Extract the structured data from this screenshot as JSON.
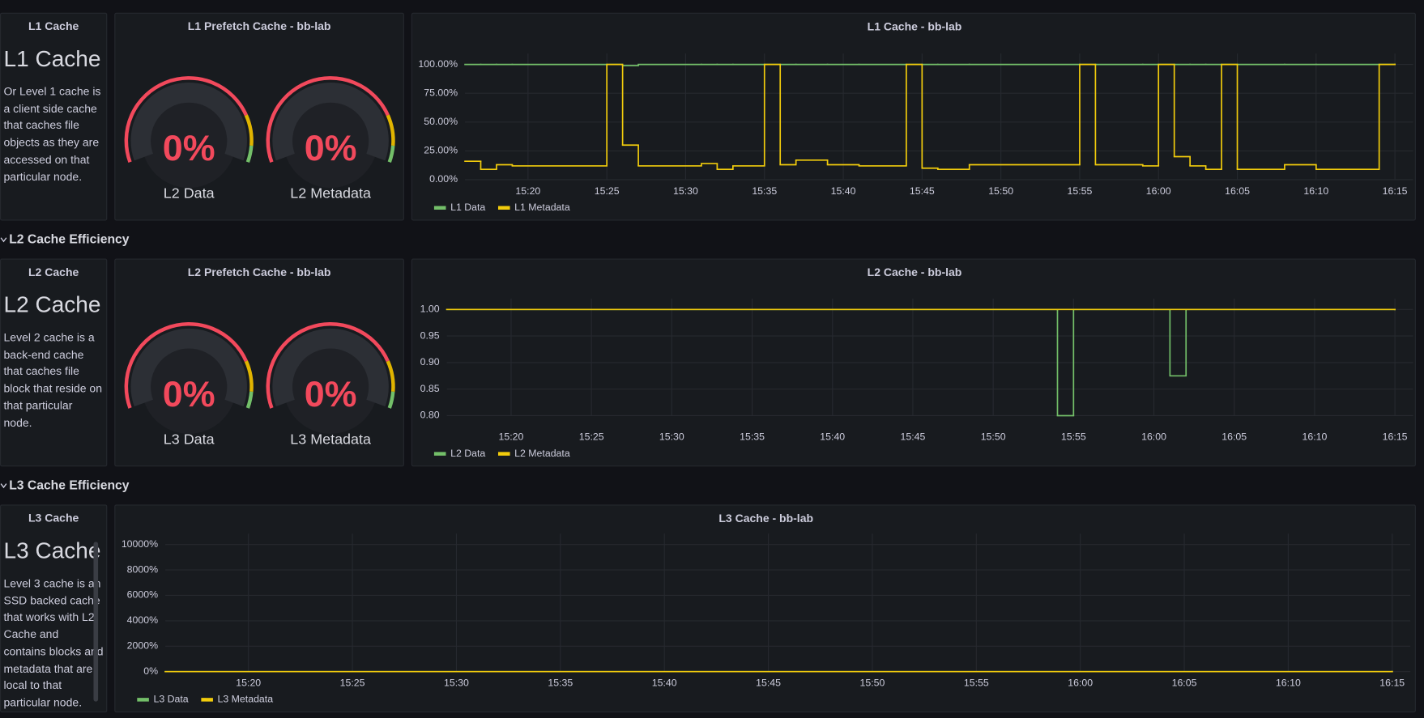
{
  "rows": [
    {
      "title": "L2 Cache Efficiency"
    },
    {
      "title": "L3 Cache Efficiency"
    }
  ],
  "text_panels": [
    {
      "title": "L1 Cache",
      "heading": "L1 Cache",
      "body": "Or Level 1 cache is a client side cache that caches file objects as they are accessed on that particular node."
    },
    {
      "title": "L2 Cache",
      "heading": "L2 Cache",
      "body": "Level 2 cache is a back-end cache that caches file block that reside on that particular node."
    },
    {
      "title": "L3 Cache",
      "heading": "L3 Cache",
      "body": "Level 3 cache is an SSD backed cache that works with L2 Cache and contains blocks and metadata that are local to that particular node."
    }
  ],
  "gauge_panels": [
    {
      "title": "L1 Prefetch Cache - bb-lab",
      "min": 0,
      "max": 100,
      "thresholds": [
        {
          "from": 0,
          "color": "#f2495c"
        },
        {
          "from": 80,
          "color": "#e0b400"
        },
        {
          "from": 93,
          "color": "#73bf69"
        }
      ],
      "gauges": [
        {
          "name": "L2 Data",
          "value": 0,
          "value_label": "0%"
        },
        {
          "name": "L2 Metadata",
          "value": 0,
          "value_label": "0%"
        }
      ]
    },
    {
      "title": "L2 Prefetch Cache - bb-lab",
      "min": 0,
      "max": 100,
      "thresholds": [
        {
          "from": 0,
          "color": "#f2495c"
        },
        {
          "from": 80,
          "color": "#e0b400"
        },
        {
          "from": 93,
          "color": "#73bf69"
        }
      ],
      "gauges": [
        {
          "name": "L3 Data",
          "value": 0,
          "value_label": "0%"
        },
        {
          "name": "L3 Metadata",
          "value": 0,
          "value_label": "0%"
        }
      ]
    }
  ],
  "chart_data": [
    {
      "type": "line",
      "title": "L1 Cache - bb-lab",
      "x": [
        "15:16",
        "15:17",
        "15:18",
        "15:19",
        "15:25",
        "15:26",
        "15:27",
        "15:31",
        "15:32",
        "15:33",
        "15:35",
        "15:36",
        "15:37",
        "15:39",
        "15:41",
        "15:44",
        "15:45",
        "15:46",
        "15:48",
        "15:55",
        "15:56",
        "15:59",
        "16:00",
        "16:01",
        "16:02",
        "16:03",
        "16:04",
        "16:05",
        "16:08",
        "16:10",
        "16:14",
        "16:15"
      ],
      "series": [
        {
          "name": "L1 Data",
          "color": "#73bf69",
          "values": [
            100,
            100,
            100,
            100,
            100,
            99,
            100,
            100,
            100,
            100,
            100,
            100,
            100,
            100,
            100,
            100,
            100,
            100,
            100,
            100,
            100,
            100,
            100,
            100,
            100,
            100,
            100,
            100,
            100,
            100,
            100,
            100
          ]
        },
        {
          "name": "L1 Metadata",
          "color": "#f2cc0c",
          "values": [
            16,
            9,
            13,
            12,
            100,
            30,
            12,
            14,
            9,
            12,
            100,
            13,
            17,
            13,
            12,
            100,
            10,
            9,
            13,
            100,
            13,
            12,
            100,
            20,
            12,
            9,
            100,
            9,
            13,
            9,
            100,
            100
          ]
        }
      ],
      "xlim": [
        "15:16",
        "16:15"
      ],
      "xticks": [
        "15:20",
        "15:25",
        "15:30",
        "15:35",
        "15:40",
        "15:45",
        "15:50",
        "15:55",
        "16:00",
        "16:05",
        "16:10",
        "16:15"
      ],
      "ylim": [
        0,
        100
      ],
      "yticks": [
        {
          "value": 0,
          "label": "0.00%"
        },
        {
          "value": 25,
          "label": "25.00%"
        },
        {
          "value": 50,
          "label": "50.00%"
        },
        {
          "value": 75,
          "label": "75.00%"
        },
        {
          "value": 100,
          "label": "100.00%"
        }
      ],
      "grid": true,
      "legend": "bottom-left"
    },
    {
      "type": "line",
      "title": "L2 Cache - bb-lab",
      "x": [
        "15:16",
        "15:54",
        "15:55",
        "16:01",
        "16:02",
        "16:15"
      ],
      "series": [
        {
          "name": "L2 Data",
          "color": "#73bf69",
          "values": [
            1,
            0.8,
            1,
            0.875,
            1,
            1
          ]
        },
        {
          "name": "L2 Metadata",
          "color": "#f2cc0c",
          "values": [
            1,
            1,
            1,
            1,
            1,
            1
          ]
        }
      ],
      "xlim": [
        "15:16",
        "16:15"
      ],
      "xticks": [
        "15:20",
        "15:25",
        "15:30",
        "15:35",
        "15:40",
        "15:45",
        "15:50",
        "15:55",
        "16:00",
        "16:05",
        "16:10",
        "16:15"
      ],
      "ylim": [
        0.8,
        1
      ],
      "yticks": [
        {
          "value": 0.8,
          "label": "0.80"
        },
        {
          "value": 0.85,
          "label": "0.85"
        },
        {
          "value": 0.9,
          "label": "0.90"
        },
        {
          "value": 0.95,
          "label": "0.95"
        },
        {
          "value": 1,
          "label": "1.00"
        }
      ],
      "grid": true,
      "legend": "bottom-left"
    },
    {
      "type": "line",
      "title": "L3 Cache - bb-lab",
      "x": [
        "15:16",
        "16:15"
      ],
      "series": [
        {
          "name": "L3 Data",
          "color": "#73bf69",
          "values": [
            0,
            0
          ]
        },
        {
          "name": "L3 Metadata",
          "color": "#f2cc0c",
          "values": [
            0,
            0
          ]
        }
      ],
      "xlim": [
        "15:16",
        "16:15"
      ],
      "xticks": [
        "15:20",
        "15:25",
        "15:30",
        "15:35",
        "15:40",
        "15:45",
        "15:50",
        "15:55",
        "16:00",
        "16:05",
        "16:10",
        "16:15"
      ],
      "ylim": [
        0,
        10000
      ],
      "yticks": [
        {
          "value": 0,
          "label": "0%"
        },
        {
          "value": 2000,
          "label": "2000%"
        },
        {
          "value": 4000,
          "label": "4000%"
        },
        {
          "value": 6000,
          "label": "6000%"
        },
        {
          "value": 8000,
          "label": "8000%"
        },
        {
          "value": 10000,
          "label": "10000%"
        }
      ],
      "grid": true,
      "legend": "bottom-left"
    }
  ]
}
